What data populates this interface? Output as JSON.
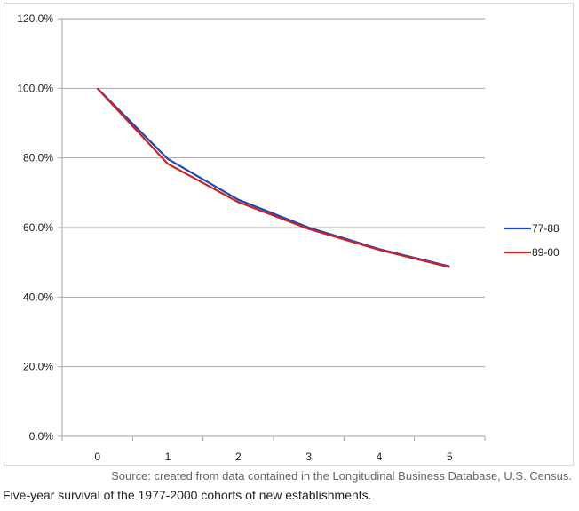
{
  "chart_data": {
    "type": "line",
    "title": "",
    "xlabel": "",
    "ylabel": "",
    "x": [
      0,
      1,
      2,
      3,
      4,
      5
    ],
    "x_tick_labels": [
      "0",
      "1",
      "2",
      "3",
      "4",
      "5"
    ],
    "y_tick_labels": [
      "0.0%",
      "20.0%",
      "40.0%",
      "60.0%",
      "80.0%",
      "100.0%",
      "120.0%"
    ],
    "ylim": [
      0,
      120
    ],
    "y_unit": "%",
    "grid": "horizontal",
    "legend_position": "right",
    "series": [
      {
        "name": "77-88",
        "color": "#2046b8",
        "values": [
          100.0,
          79.7,
          68.0,
          60.0,
          53.8,
          48.8
        ]
      },
      {
        "name": "89-00",
        "color": "#cc2222",
        "values": [
          100.0,
          78.3,
          67.3,
          59.6,
          53.6,
          48.6
        ]
      }
    ]
  },
  "source_note": "Source: created from data contained in the Longitudinal Business Database, U.S. Census.",
  "caption": "Five-year survival of the 1977-2000 cohorts of new establishments."
}
